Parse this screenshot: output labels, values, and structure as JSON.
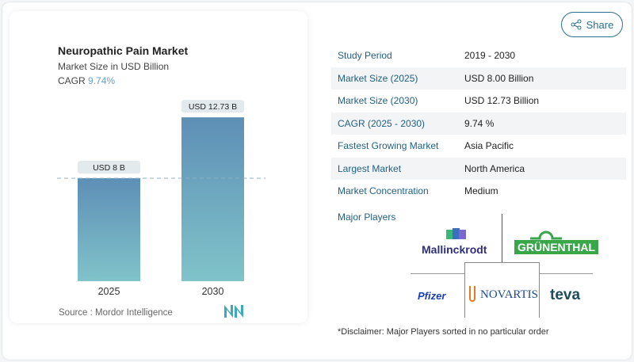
{
  "share": {
    "label": "Share",
    "icon": "share-icon"
  },
  "chart": {
    "title": "Neuropathic Pain Market",
    "subtitle": "Market Size in USD Billion",
    "cagr_label": "CAGR",
    "cagr_value": "9.74%",
    "source": "Source :  Mordor Intelligence"
  },
  "chart_data": {
    "type": "bar",
    "categories": [
      "2025",
      "2030"
    ],
    "values": [
      8.0,
      12.73
    ],
    "data_labels": [
      "USD 8 B",
      "USD 12.73 B"
    ],
    "title": "Neuropathic Pain Market",
    "subtitle": "Market Size in USD Billion",
    "colors": {
      "top": "#5e8fb6",
      "bottom": "#80c3c9"
    },
    "reference_line": 8.0
  },
  "table": [
    {
      "k": "Study Period",
      "v": "2019 - 2030"
    },
    {
      "k": "Market Size (2025)",
      "v": "USD 8.00 Billion"
    },
    {
      "k": "Market Size (2030)",
      "v": "USD 12.73 Billion"
    },
    {
      "k": "CAGR (2025 - 2030)",
      "v": "9.74 %"
    },
    {
      "k": "Fastest Growing Market",
      "v": "Asia Pacific"
    },
    {
      "k": "Largest Market",
      "v": "North America"
    },
    {
      "k": "Market Concentration",
      "v": "Medium"
    }
  ],
  "players": {
    "label": "Major Players",
    "logos": [
      "Mallinckrodt",
      "GRÜNENTHAL",
      "Pfizer",
      "NOVARTIS",
      "teva"
    ],
    "disclaimer": "*Disclaimer: Major Players sorted in no particular order"
  }
}
